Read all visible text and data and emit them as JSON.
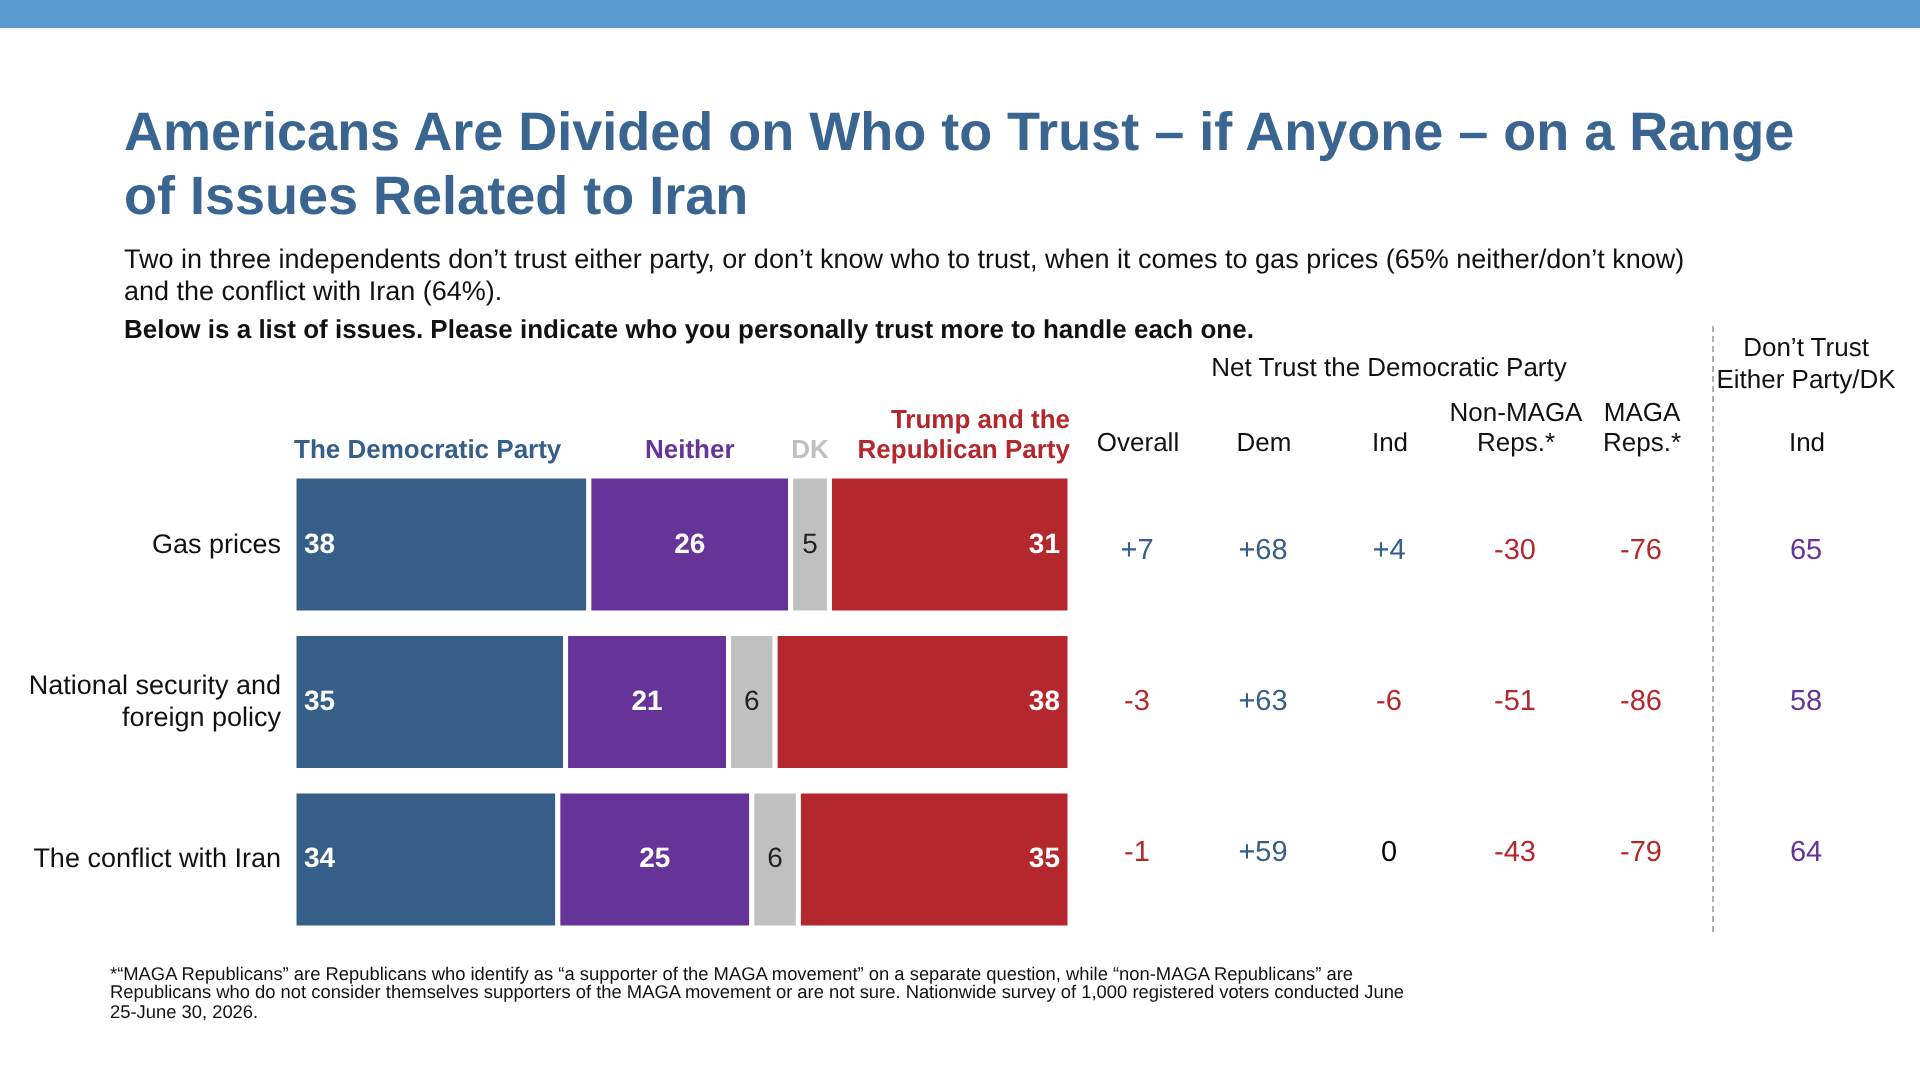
{
  "chart_data": [
    {
      "type": "bar",
      "orientation": "horizontal",
      "stacked": true,
      "title": "Americans Are Divided on Who to Trust – if Anyone – on a Range of Issues Related to Iran",
      "subtitle": "Two in three independents don’t trust either party, or don’t know who to trust, when it comes to gas prices (65% neither/don’t know) and the conflict with Iran (64%).",
      "annotations": [
        "Below is a list of issues. Please indicate who you personally trust more to handle each one.",
        "*“MAGA Republicans” are Republicans who identify as “a supporter of the MAGA movement” on a separate question, while “non-MAGA Republicans” are Republicans who do not consider themselves supporters of the MAGA movement or are not sure. Nationwide survey of 1,000 registered voters conducted June 25-June 30, 2026."
      ],
      "categories": [
        "Gas prices",
        "National security and foreign policy",
        "The conflict with Iran"
      ],
      "series": [
        {
          "name": "The Democratic Party",
          "color": "#355e88",
          "values": [
            38,
            35,
            34
          ]
        },
        {
          "name": "Neither",
          "color": "#663399",
          "values": [
            26,
            21,
            25
          ]
        },
        {
          "name": "DK",
          "color": "#c0c0c0",
          "values": [
            5,
            6,
            6
          ]
        },
        {
          "name": "Trump and the Republican Party",
          "color": "#b3272d",
          "values": [
            31,
            38,
            35
          ]
        }
      ],
      "data_labels": true,
      "legend": "top"
    },
    {
      "type": "heatmap",
      "title": "Net Trust the Democratic Party",
      "categories": [
        "Overall",
        "Dem",
        "Ind",
        "Non-MAGA Reps.*",
        "MAGA Reps.*"
      ],
      "y_categories": [
        null,
        null,
        null
      ],
      "cells": [
        [
          7,
          68,
          4,
          -30,
          -76
        ],
        [
          -3,
          63,
          -6,
          -51,
          -86
        ],
        [
          -1,
          59,
          0,
          -43,
          -79
        ]
      ],
      "cell_labels": [
        [
          "+7",
          "+68",
          "+4",
          "-30",
          "-76"
        ],
        [
          "-3",
          "+63",
          "-6",
          "-51",
          "-86"
        ],
        [
          "-1",
          "+59",
          "0",
          "-43",
          "-79"
        ]
      ],
      "colors": [
        [
          "#355e88",
          "#355e88",
          "#355e88",
          "#b3272d",
          "#b3272d"
        ],
        [
          "#b3272d",
          "#355e88",
          "#b3272d",
          "#b3272d",
          "#b3272d"
        ],
        [
          "#b3272d",
          "#355e88",
          "#000000",
          "#b3272d",
          "#b3272d"
        ]
      ]
    },
    {
      "type": "heatmap",
      "title": "Don’t Trust Either Party/DK",
      "categories": [
        "Ind"
      ],
      "y_categories": [
        null,
        null,
        null
      ],
      "cells": [
        [
          65
        ],
        [
          58
        ],
        [
          64
        ]
      ],
      "cell_labels": [
        [
          "65"
        ],
        [
          "58"
        ],
        [
          "64"
        ]
      ],
      "color": "#663399"
    }
  ]
}
